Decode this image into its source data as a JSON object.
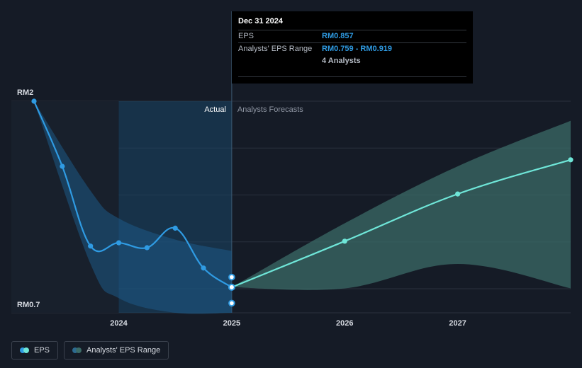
{
  "chart_data": {
    "type": "line",
    "y_unit_labels": {
      "top": "RM2",
      "bottom": "RM0.7"
    },
    "ylim": [
      0.7,
      2.0
    ],
    "x_ticks": [
      "2024",
      "2025",
      "2026",
      "2027"
    ],
    "sections": {
      "actual": "Actual",
      "forecast": "Analysts Forecasts"
    },
    "series": [
      {
        "name": "EPS",
        "actual": [
          {
            "x": 2023.25,
            "y": 2.0
          },
          {
            "x": 2023.5,
            "y": 1.6
          },
          {
            "x": 2023.75,
            "y": 1.11
          },
          {
            "x": 2024.0,
            "y": 1.13
          },
          {
            "x": 2024.25,
            "y": 1.1
          },
          {
            "x": 2024.5,
            "y": 1.22
          },
          {
            "x": 2024.75,
            "y": 0.975
          },
          {
            "x": 2025.0,
            "y": 0.857
          }
        ],
        "forecast": [
          {
            "x": 2025.0,
            "y": 0.857
          },
          {
            "x": 2026.0,
            "y": 1.14
          },
          {
            "x": 2027.0,
            "y": 1.43
          },
          {
            "x": 2028.0,
            "y": 1.64
          }
        ]
      }
    ],
    "actual_range": {
      "upper": [
        {
          "x": 2023.25,
          "y": 2.0
        },
        {
          "x": 2023.75,
          "y": 1.45
        },
        {
          "x": 2024.0,
          "y": 1.28
        },
        {
          "x": 2024.5,
          "y": 1.15
        },
        {
          "x": 2025.0,
          "y": 1.08
        }
      ],
      "lower": [
        {
          "x": 2023.25,
          "y": 2.0
        },
        {
          "x": 2023.75,
          "y": 1.0
        },
        {
          "x": 2024.0,
          "y": 0.79
        },
        {
          "x": 2024.5,
          "y": 0.7
        },
        {
          "x": 2025.0,
          "y": 0.7
        }
      ]
    },
    "actual_range_markers": [
      {
        "x": 2025.0,
        "y": 0.919
      },
      {
        "x": 2025.0,
        "y": 0.759
      }
    ],
    "forecast_range": {
      "upper": [
        {
          "x": 2025.0,
          "y": 0.857
        },
        {
          "x": 2026.0,
          "y": 1.25
        },
        {
          "x": 2027.0,
          "y": 1.6
        },
        {
          "x": 2028.0,
          "y": 1.88
        }
      ],
      "lower": [
        {
          "x": 2025.0,
          "y": 0.857
        },
        {
          "x": 2026.0,
          "y": 0.85
        },
        {
          "x": 2027.0,
          "y": 1.0
        },
        {
          "x": 2028.0,
          "y": 0.85
        }
      ]
    },
    "tooltip": {
      "date": "Dec 31 2024",
      "rows": [
        {
          "label": "EPS",
          "value": "RM0.857"
        },
        {
          "label": "Analysts' EPS Range",
          "value": "RM0.759 - RM0.919"
        },
        {
          "label": "",
          "value": "4 Analysts"
        }
      ]
    },
    "legend": [
      {
        "label": "EPS",
        "colors": [
          "#2f9be3",
          "#6fe6d8"
        ]
      },
      {
        "label": "Analysts' EPS Range",
        "colors": [
          "#2c6a8f",
          "#3b6b67"
        ]
      }
    ],
    "colors": {
      "actual_line": "#2f9be3",
      "forecast_line": "#6fe6d8",
      "actual_band": "#1e5a86",
      "forecast_band": "#3b6b67",
      "past_shade": "#1a4566"
    },
    "grid": true,
    "legend_position": "bottom-left"
  }
}
